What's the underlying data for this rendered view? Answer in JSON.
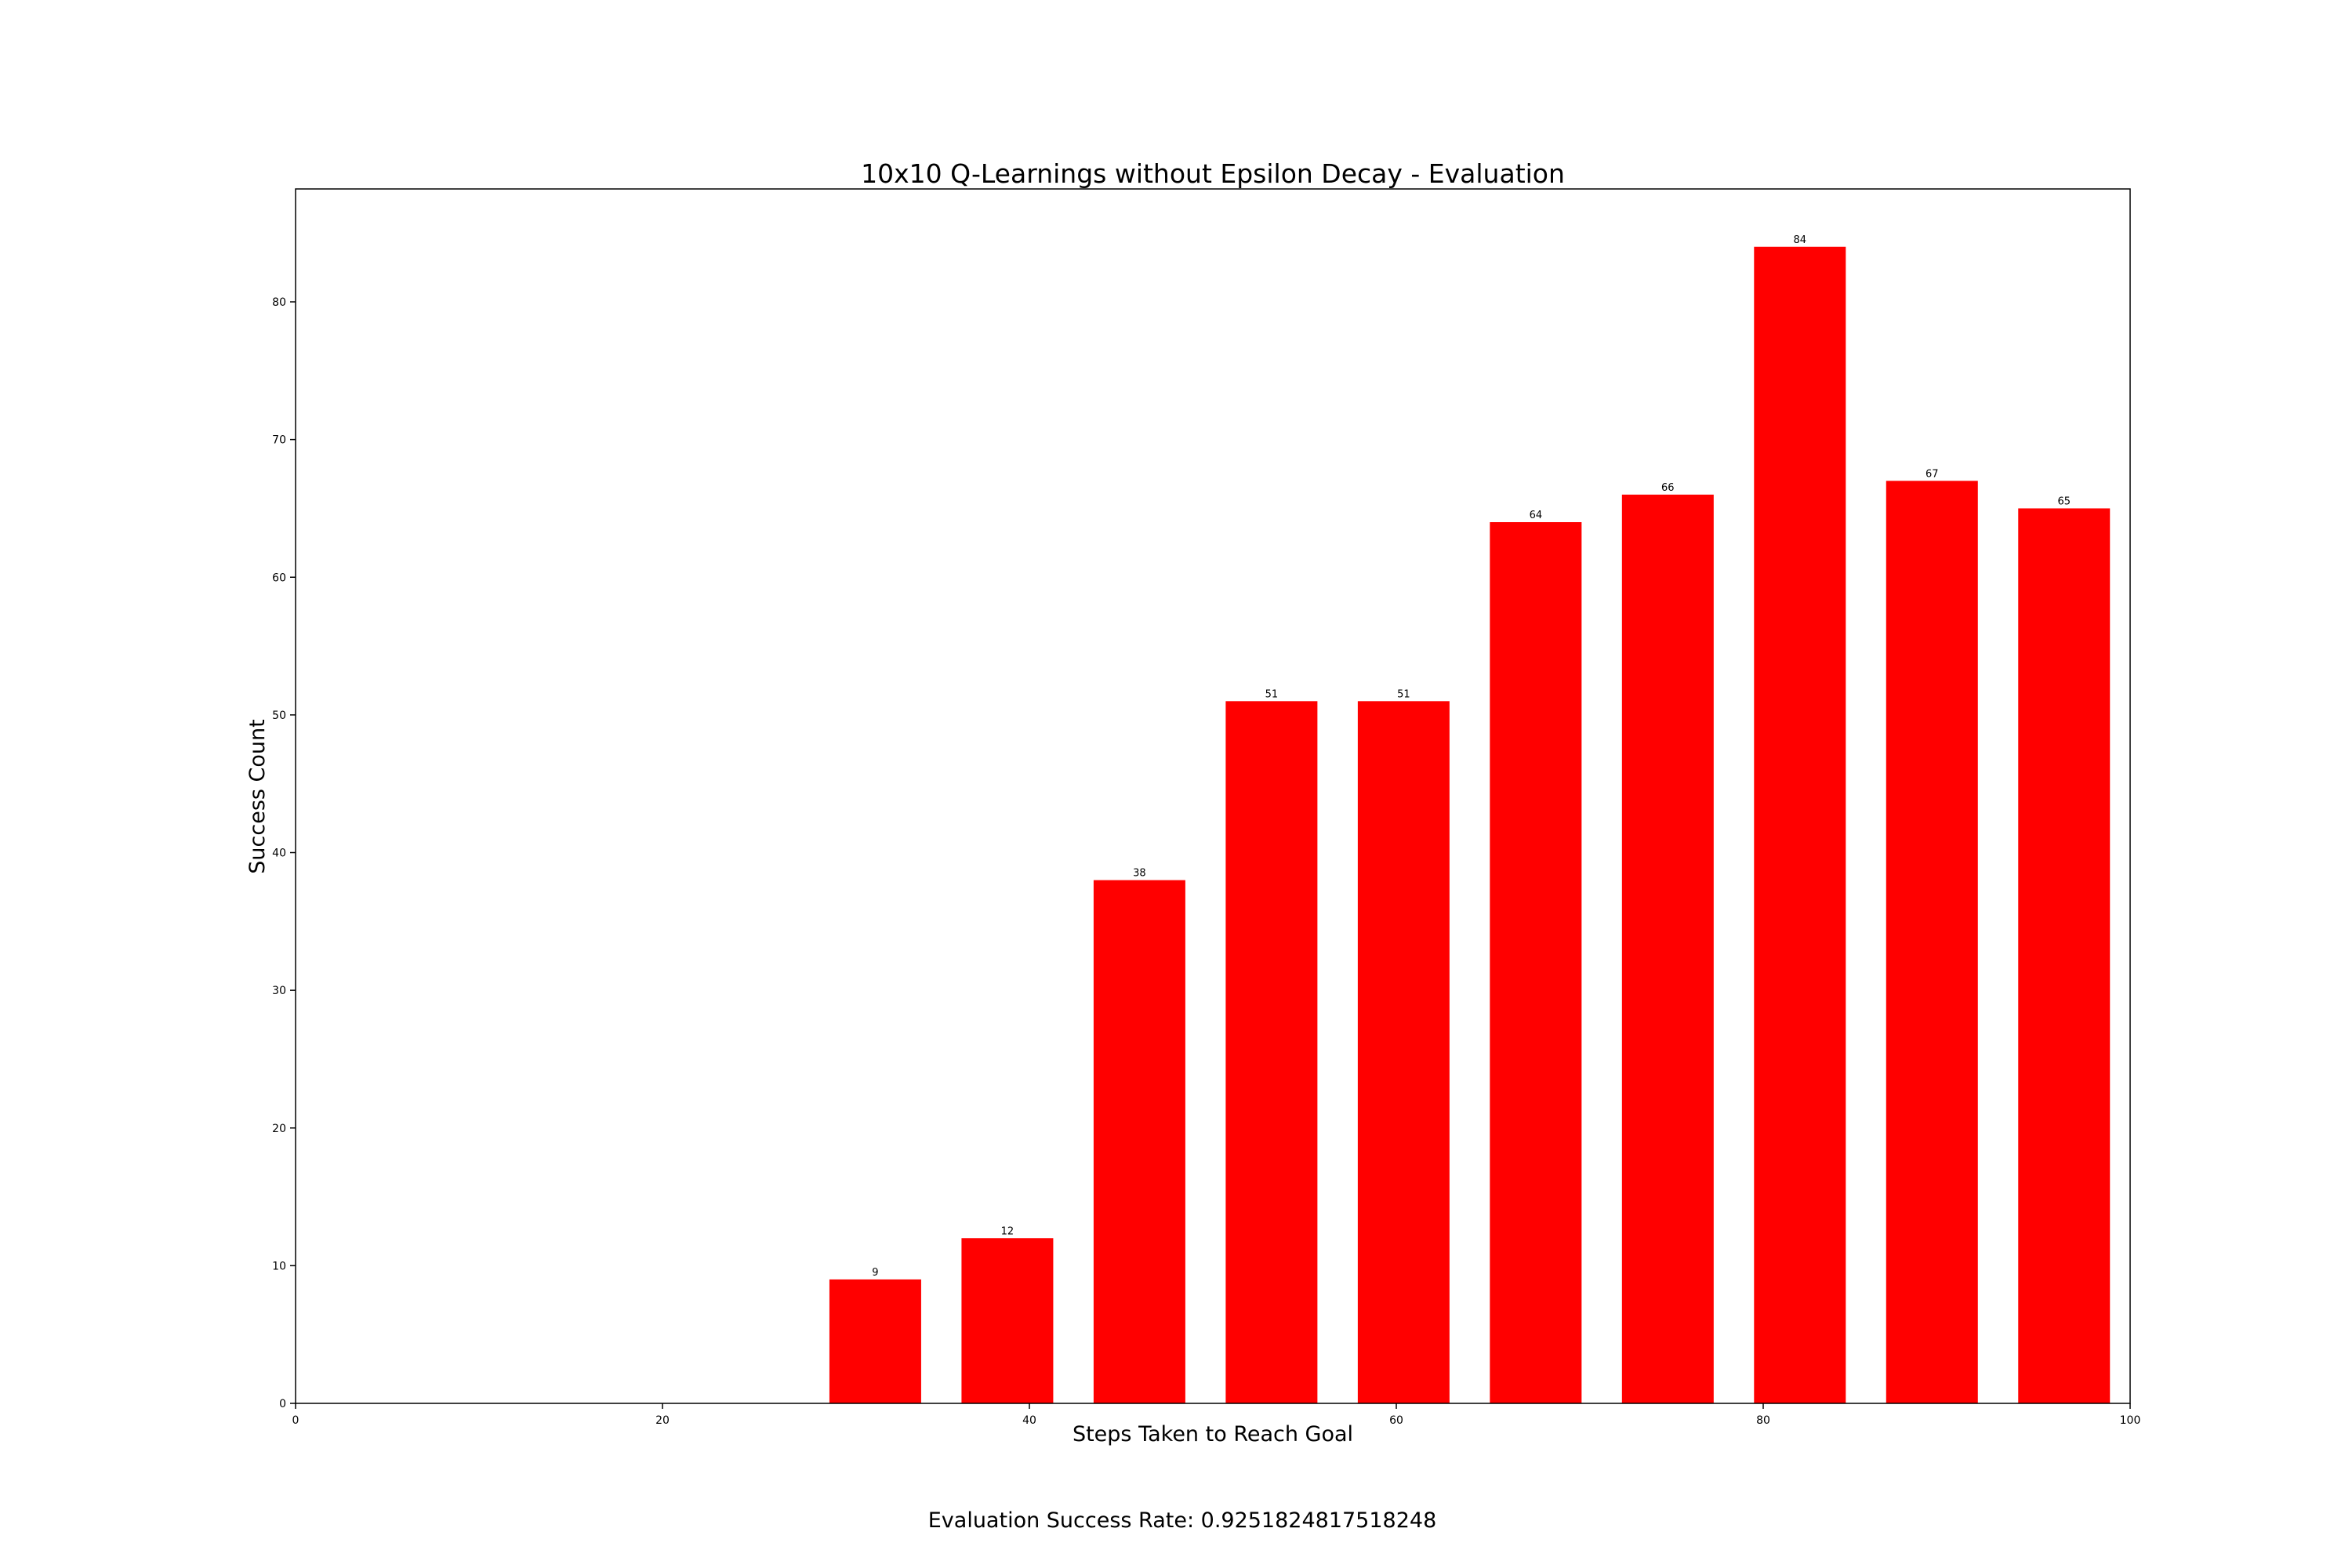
{
  "chart_data": {
    "type": "bar",
    "title": "10x10 Q-Learnings without Epsilon Decay - Evaluation",
    "xlabel": "Steps Taken to Reach Goal",
    "ylabel": "Success Count",
    "xlim": [
      0,
      100
    ],
    "ylim": [
      0,
      88.2
    ],
    "xticks": [
      0,
      20,
      40,
      60,
      80,
      100
    ],
    "yticks": [
      0,
      10,
      20,
      30,
      40,
      50,
      60,
      70,
      80
    ],
    "grid": false,
    "legend": "none",
    "bar_color": "#ff0000",
    "bins": [
      {
        "start": 29.1,
        "end": 34.1,
        "value": 9
      },
      {
        "start": 36.3,
        "end": 41.3,
        "value": 12
      },
      {
        "start": 43.5,
        "end": 48.5,
        "value": 38
      },
      {
        "start": 50.7,
        "end": 55.7,
        "value": 51
      },
      {
        "start": 57.9,
        "end": 62.9,
        "value": 51
      },
      {
        "start": 65.1,
        "end": 70.1,
        "value": 64
      },
      {
        "start": 72.3,
        "end": 77.3,
        "value": 66
      },
      {
        "start": 79.5,
        "end": 84.5,
        "value": 84
      },
      {
        "start": 86.7,
        "end": 91.7,
        "value": 67
      },
      {
        "start": 93.9,
        "end": 98.9,
        "value": 65
      }
    ]
  },
  "footer": {
    "text": "Evaluation Success Rate: 0.9251824817518248"
  }
}
